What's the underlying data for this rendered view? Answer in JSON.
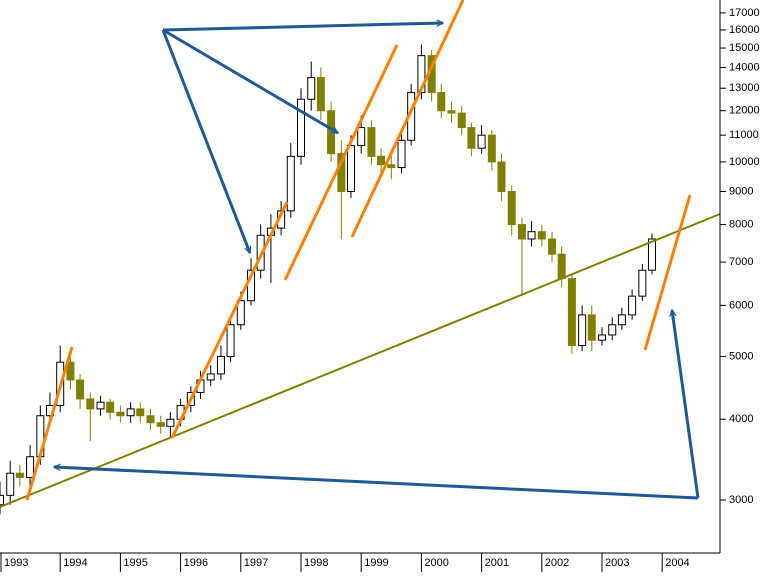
{
  "chart_data": {
    "type": "candlestick",
    "log_scale": true,
    "up_color": "#ffffff",
    "down_color": "#808000",
    "wick_color": "#000000",
    "xlim": [
      1993,
      2004.96
    ],
    "xticks": [
      1993,
      1994,
      1995,
      1996,
      1997,
      1998,
      1999,
      2000,
      2001,
      2002,
      2003,
      2004
    ],
    "ylim": [
      2484,
      17800
    ],
    "yticks": [
      3000,
      4000,
      5000,
      6000,
      7000,
      8000,
      9000,
      10000,
      11000,
      12000,
      13000,
      14000,
      15000,
      16000,
      17000
    ],
    "x": [
      1993.0,
      1993.17,
      1993.33,
      1993.5,
      1993.67,
      1993.83,
      1994.0,
      1994.17,
      1994.33,
      1994.5,
      1994.67,
      1994.83,
      1995.0,
      1995.17,
      1995.33,
      1995.5,
      1995.67,
      1995.83,
      1996.0,
      1996.17,
      1996.33,
      1996.5,
      1996.67,
      1996.83,
      1997.0,
      1997.17,
      1997.33,
      1997.5,
      1997.67,
      1997.83,
      1998.0,
      1998.17,
      1998.33,
      1998.5,
      1998.67,
      1998.83,
      1999.0,
      1999.17,
      1999.33,
      1999.5,
      1999.67,
      1999.83,
      2000.0,
      2000.17,
      2000.33,
      2000.5,
      2000.67,
      2000.83,
      2001.0,
      2001.17,
      2001.33,
      2001.5,
      2001.67,
      2001.83,
      2002.0,
      2002.17,
      2002.33,
      2002.5,
      2002.67,
      2002.83,
      2003.0,
      2003.17,
      2003.33,
      2003.5,
      2003.67,
      2003.83
    ],
    "open": [
      2950,
      3050,
      3300,
      3250,
      3500,
      4050,
      4200,
      4900,
      4600,
      4300,
      4150,
      4250,
      4100,
      4050,
      4150,
      4050,
      3950,
      3900,
      4000,
      4200,
      4400,
      4600,
      4700,
      5000,
      5600,
      6100,
      6800,
      7700,
      7900,
      8400,
      10200,
      12500,
      13500,
      12000,
      10300,
      9000,
      10600,
      11300,
      10200,
      9900,
      9800,
      10800,
      12800,
      14600,
      12800,
      12000,
      11900,
      11300,
      10500,
      11000,
      10000,
      9000,
      8000,
      7600,
      7800,
      7600,
      7200,
      6600,
      5200,
      5800,
      5300,
      5400,
      5600,
      5800,
      6200,
      6800
    ],
    "high": [
      3200,
      3450,
      3400,
      3650,
      4200,
      4400,
      5200,
      5000,
      4700,
      4400,
      4350,
      4300,
      4200,
      4250,
      4250,
      4150,
      4050,
      4100,
      4300,
      4500,
      4750,
      4850,
      5200,
      5800,
      6300,
      7100,
      8000,
      8300,
      8700,
      10700,
      13000,
      14300,
      14000,
      12400,
      10800,
      11000,
      11800,
      11600,
      10500,
      10200,
      11100,
      13200,
      15200,
      14900,
      13200,
      12400,
      12200,
      11500,
      11400,
      11200,
      10300,
      9200,
      8200,
      8100,
      8000,
      7800,
      7400,
      6700,
      6000,
      6000,
      5550,
      5750,
      5950,
      6350,
      6950,
      7750
    ],
    "low": [
      2850,
      2950,
      3150,
      3150,
      3400,
      3900,
      4100,
      4450,
      4150,
      3700,
      4050,
      4000,
      3950,
      3950,
      3950,
      3850,
      3800,
      3750,
      3900,
      4100,
      4300,
      4500,
      4600,
      4900,
      5500,
      6000,
      6600,
      6500,
      7700,
      8200,
      9900,
      12000,
      11600,
      10000,
      7600,
      8800,
      10300,
      9900,
      9600,
      9400,
      9600,
      10600,
      12500,
      12400,
      11700,
      11500,
      11000,
      10200,
      10300,
      9700,
      8700,
      7700,
      6200,
      7400,
      7400,
      7000,
      6400,
      5050,
      5100,
      5100,
      5200,
      5300,
      5500,
      5700,
      6100,
      6700
    ],
    "close": [
      3050,
      3300,
      3250,
      3500,
      4050,
      4200,
      4900,
      4600,
      4300,
      4150,
      4250,
      4100,
      4050,
      4150,
      4050,
      3950,
      3900,
      4000,
      4200,
      4400,
      4600,
      4700,
      5000,
      5600,
      6100,
      6800,
      7700,
      7900,
      8400,
      10200,
      12500,
      13500,
      12000,
      10300,
      9000,
      10600,
      11300,
      10200,
      9900,
      9800,
      10800,
      12800,
      14600,
      12800,
      12000,
      11900,
      11300,
      10500,
      11000,
      10000,
      9000,
      8000,
      7600,
      7800,
      7600,
      7200,
      6600,
      5200,
      5800,
      5300,
      5400,
      5600,
      5800,
      6200,
      6800,
      7600
    ]
  }
}
